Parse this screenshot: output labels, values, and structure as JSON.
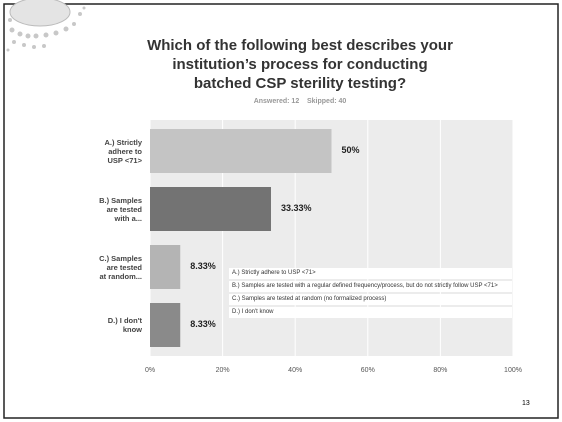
{
  "chart_data": {
    "type": "bar",
    "orientation": "horizontal",
    "title": "Which of the following best describes your\ninstitution’s process for conducting\nbatched CSP sterility testing?",
    "subtitle": "Answered: 12    Skipped: 40",
    "categories": [
      "A.) Strictly\nadhere to\nUSP <71>",
      "B.) Samples\nare tested\nwith a...",
      "C.) Samples\nare tested\nat random...",
      "D.) I don't\nknow"
    ],
    "values": [
      50,
      33.33,
      8.33,
      8.33
    ],
    "value_labels": [
      "50%",
      "33.33%",
      "8.33%",
      "8.33%"
    ],
    "colors": [
      "#c4c4c4",
      "#737373",
      "#b4b4b4",
      "#8a8a8a"
    ],
    "xlim": [
      0,
      100
    ],
    "xticks": [
      {
        "value": 0,
        "label": "0%"
      },
      {
        "value": 20,
        "label": "20%"
      },
      {
        "value": 40,
        "label": "40%"
      },
      {
        "value": 60,
        "label": "60%"
      },
      {
        "value": 80,
        "label": "80%"
      },
      {
        "value": 100,
        "label": "100%"
      }
    ],
    "grid": true,
    "legend_entries": [
      "A.) Strictly adhere to USP <71>",
      "B.) Samples are tested with a regular defined frequency/process, but do not strictly follow USP <71>",
      "C.) Samples are tested at random (no formalized process)",
      "D.) I don't know"
    ]
  },
  "page_number": "13"
}
